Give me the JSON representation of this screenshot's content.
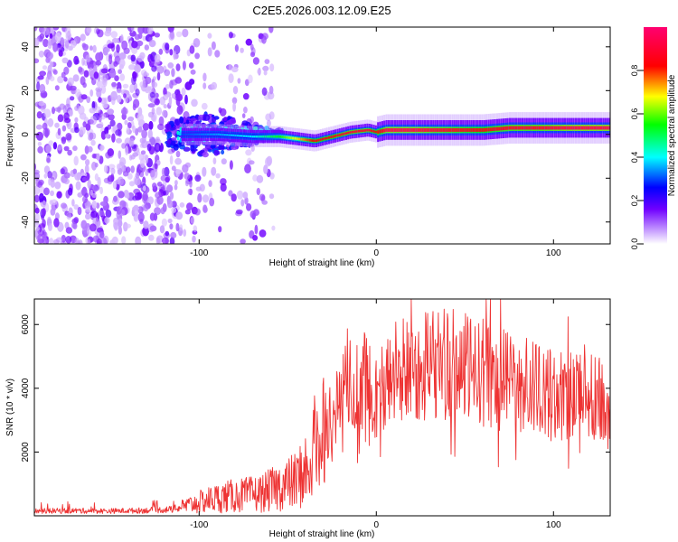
{
  "figure_title": "C2E5.2026.003.12.09.E25",
  "colors": {
    "signal": "#ee3333",
    "frame": "#000000",
    "background": "#ffffff"
  },
  "chart_data": [
    {
      "type": "heatmap",
      "title": "C2E5.2026.003.12.09.E25",
      "xlabel": "Height of straight line (km)",
      "ylabel": "Frequency (Hz)",
      "xlim": [
        -193,
        132
      ],
      "ylim": [
        -50,
        49
      ],
      "xticks": [
        -100,
        0,
        100
      ],
      "yticks": [
        -40,
        -20,
        0,
        20,
        40
      ],
      "colorbar": {
        "label": "Normalized spectral amplitude",
        "range": [
          0,
          1
        ],
        "ticks": [
          0.0,
          0.2,
          0.4,
          0.6,
          0.8
        ]
      },
      "ridge": {
        "description_x": [
          -110,
          -90,
          -70,
          -55,
          -45,
          -35,
          -25,
          -15,
          -5,
          0,
          5,
          20,
          40,
          60,
          75,
          90,
          110,
          132
        ],
        "frequency_hz": [
          0,
          0,
          -1,
          -1,
          -2,
          -3,
          -1,
          1,
          2,
          1,
          2,
          2,
          2,
          2,
          3,
          3,
          3,
          3
        ],
        "amplitude": [
          0.3,
          0.35,
          0.4,
          0.55,
          0.7,
          0.85,
          0.85,
          0.9,
          0.9,
          0.8,
          0.95,
          0.95,
          0.9,
          0.85,
          0.9,
          0.9,
          0.95,
          0.95
        ]
      }
    },
    {
      "type": "line",
      "xlabel": "Height of straight line (km)",
      "ylabel": "SNR (10 * v/v)",
      "xlim": [
        -193,
        132
      ],
      "ylim": [
        0,
        6800
      ],
      "xticks": [
        -100,
        0,
        100
      ],
      "yticks": [
        2000,
        4000,
        6000
      ],
      "series": [
        {
          "name": "SNR",
          "color": "#ee3333",
          "x": [
            -193,
            -170,
            -150,
            -130,
            -115,
            -105,
            -95,
            -85,
            -75,
            -65,
            -55,
            -45,
            -38,
            -32,
            -25,
            -20,
            -15,
            -10,
            -5,
            0,
            5,
            10,
            20,
            30,
            40,
            50,
            60,
            70,
            80,
            90,
            95,
            100,
            110,
            120,
            125,
            132
          ],
          "y": [
            150,
            160,
            150,
            170,
            200,
            350,
            500,
            600,
            650,
            700,
            900,
            1100,
            1600,
            2500,
            3000,
            3800,
            4000,
            4300,
            4100,
            3800,
            4000,
            4500,
            4600,
            4800,
            4800,
            4600,
            4500,
            4300,
            4200,
            4000,
            3900,
            3700,
            3900,
            4100,
            3700,
            3000
          ]
        }
      ]
    }
  ]
}
